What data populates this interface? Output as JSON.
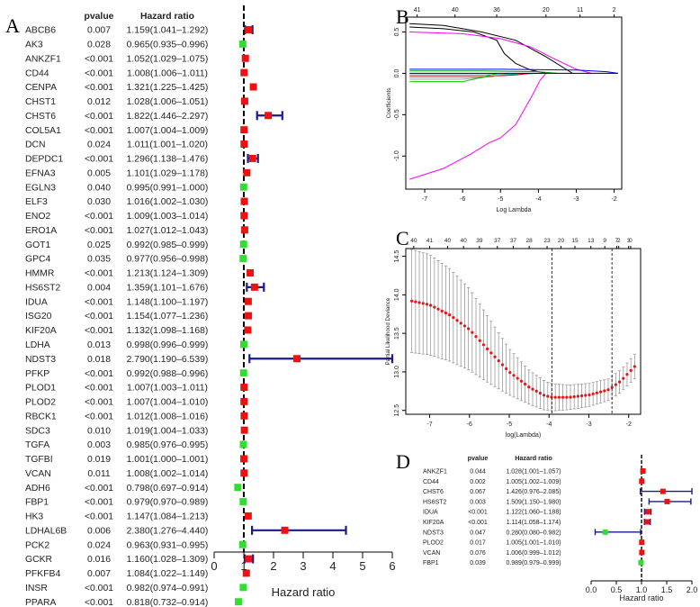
{
  "panel_labels": {
    "a": "A",
    "b": "B",
    "c": "C",
    "d": "D"
  },
  "chart_data": [
    {
      "panel": "A",
      "type": "forest",
      "col_headers": {
        "gene": "",
        "pvalue": "pvalue",
        "hr": "Hazard ratio"
      },
      "xlabel": "Hazard ratio",
      "xlim": [
        0,
        6
      ],
      "xticks": [
        0,
        1,
        2,
        3,
        4,
        5,
        6
      ],
      "ref_line": 1,
      "rows": [
        {
          "gene": "ABCB6",
          "p": "0.007",
          "hr_text": "1.159(1.041–1.292)",
          "hr": 1.159,
          "lo": 1.041,
          "hi": 1.292
        },
        {
          "gene": "AK3",
          "p": "0.028",
          "hr_text": "0.965(0.935–0.996)",
          "hr": 0.965,
          "lo": 0.935,
          "hi": 0.996
        },
        {
          "gene": "ANKZF1",
          "p": "<0.001",
          "hr_text": "1.052(1.029–1.075)",
          "hr": 1.052,
          "lo": 1.029,
          "hi": 1.075
        },
        {
          "gene": "CD44",
          "p": "<0.001",
          "hr_text": "1.008(1.006–1.011)",
          "hr": 1.008,
          "lo": 1.006,
          "hi": 1.011
        },
        {
          "gene": "CENPA",
          "p": "<0.001",
          "hr_text": "1.321(1.225–1.425)",
          "hr": 1.321,
          "lo": 1.225,
          "hi": 1.425
        },
        {
          "gene": "CHST1",
          "p": "0.012",
          "hr_text": "1.028(1.006–1.051)",
          "hr": 1.028,
          "lo": 1.006,
          "hi": 1.051
        },
        {
          "gene": "CHST6",
          "p": "<0.001",
          "hr_text": "1.822(1.446–2.297)",
          "hr": 1.822,
          "lo": 1.446,
          "hi": 2.297
        },
        {
          "gene": "COL5A1",
          "p": "<0.001",
          "hr_text": "1.007(1.004–1.009)",
          "hr": 1.007,
          "lo": 1.004,
          "hi": 1.009
        },
        {
          "gene": "DCN",
          "p": "0.024",
          "hr_text": "1.011(1.001–1.020)",
          "hr": 1.011,
          "lo": 1.001,
          "hi": 1.02
        },
        {
          "gene": "DEPDC1",
          "p": "<0.001",
          "hr_text": "1.296(1.138–1.476)",
          "hr": 1.296,
          "lo": 1.138,
          "hi": 1.476
        },
        {
          "gene": "EFNA3",
          "p": "0.005",
          "hr_text": "1.101(1.029–1.178)",
          "hr": 1.101,
          "lo": 1.029,
          "hi": 1.178
        },
        {
          "gene": "EGLN3",
          "p": "0.040",
          "hr_text": "0.995(0.991–1.000)",
          "hr": 0.995,
          "lo": 0.991,
          "hi": 1.0
        },
        {
          "gene": "ELF3",
          "p": "0.030",
          "hr_text": "1.016(1.002–1.030)",
          "hr": 1.016,
          "lo": 1.002,
          "hi": 1.03
        },
        {
          "gene": "ENO2",
          "p": "<0.001",
          "hr_text": "1.009(1.003–1.014)",
          "hr": 1.009,
          "lo": 1.003,
          "hi": 1.014
        },
        {
          "gene": "ERO1A",
          "p": "<0.001",
          "hr_text": "1.027(1.012–1.043)",
          "hr": 1.027,
          "lo": 1.012,
          "hi": 1.043
        },
        {
          "gene": "GOT1",
          "p": "0.025",
          "hr_text": "0.992(0.985–0.999)",
          "hr": 0.992,
          "lo": 0.985,
          "hi": 0.999
        },
        {
          "gene": "GPC4",
          "p": "0.035",
          "hr_text": "0.977(0.956–0.998)",
          "hr": 0.977,
          "lo": 0.956,
          "hi": 0.998
        },
        {
          "gene": "HMMR",
          "p": "<0.001",
          "hr_text": "1.213(1.124–1.309)",
          "hr": 1.213,
          "lo": 1.124,
          "hi": 1.309
        },
        {
          "gene": "HS6ST2",
          "p": "0.004",
          "hr_text": "1.359(1.101–1.676)",
          "hr": 1.359,
          "lo": 1.101,
          "hi": 1.676
        },
        {
          "gene": "IDUA",
          "p": "<0.001",
          "hr_text": "1.148(1.100–1.197)",
          "hr": 1.148,
          "lo": 1.1,
          "hi": 1.197
        },
        {
          "gene": "ISG20",
          "p": "<0.001",
          "hr_text": "1.154(1.077–1.236)",
          "hr": 1.154,
          "lo": 1.077,
          "hi": 1.236
        },
        {
          "gene": "KIF20A",
          "p": "<0.001",
          "hr_text": "1.132(1.098–1.168)",
          "hr": 1.132,
          "lo": 1.098,
          "hi": 1.168
        },
        {
          "gene": "LDHA",
          "p": "0.013",
          "hr_text": "0.998(0.996–0.999)",
          "hr": 0.998,
          "lo": 0.996,
          "hi": 0.999
        },
        {
          "gene": "NDST3",
          "p": "0.018",
          "hr_text": "2.790(1.190–6.539)",
          "hr": 2.79,
          "lo": 1.19,
          "hi": 6.539
        },
        {
          "gene": "PFKP",
          "p": "<0.001",
          "hr_text": "0.992(0.988–0.996)",
          "hr": 0.992,
          "lo": 0.988,
          "hi": 0.996
        },
        {
          "gene": "PLOD1",
          "p": "<0.001",
          "hr_text": "1.007(1.003–1.011)",
          "hr": 1.007,
          "lo": 1.003,
          "hi": 1.011
        },
        {
          "gene": "PLOD2",
          "p": "<0.001",
          "hr_text": "1.007(1.004–1.010)",
          "hr": 1.007,
          "lo": 1.004,
          "hi": 1.01
        },
        {
          "gene": "RBCK1",
          "p": "<0.001",
          "hr_text": "1.012(1.008–1.016)",
          "hr": 1.012,
          "lo": 1.008,
          "hi": 1.016
        },
        {
          "gene": "SDC3",
          "p": "0.010",
          "hr_text": "1.019(1.004–1.033)",
          "hr": 1.019,
          "lo": 1.004,
          "hi": 1.033
        },
        {
          "gene": "TGFA",
          "p": "0.003",
          "hr_text": "0.985(0.976–0.995)",
          "hr": 0.985,
          "lo": 0.976,
          "hi": 0.995
        },
        {
          "gene": "TGFBI",
          "p": "0.019",
          "hr_text": "1.001(1.000–1.001)",
          "hr": 1.001,
          "lo": 1.0,
          "hi": 1.001
        },
        {
          "gene": "VCAN",
          "p": "0.011",
          "hr_text": "1.008(1.002–1.014)",
          "hr": 1.008,
          "lo": 1.002,
          "hi": 1.014
        },
        {
          "gene": "ADH6",
          "p": "<0.001",
          "hr_text": "0.798(0.697–0.914)",
          "hr": 0.798,
          "lo": 0.697,
          "hi": 0.914
        },
        {
          "gene": "FBP1",
          "p": "<0.001",
          "hr_text": "0.979(0.970–0.989)",
          "hr": 0.979,
          "lo": 0.97,
          "hi": 0.989
        },
        {
          "gene": "HK3",
          "p": "<0.001",
          "hr_text": "1.147(1.084–1.213)",
          "hr": 1.147,
          "lo": 1.084,
          "hi": 1.213
        },
        {
          "gene": "LDHAL6B",
          "p": "0.006",
          "hr_text": "2.380(1.276–4.440)",
          "hr": 2.38,
          "lo": 1.276,
          "hi": 4.44
        },
        {
          "gene": "PCK2",
          "p": "0.024",
          "hr_text": "0.963(0.931–0.995)",
          "hr": 0.963,
          "lo": 0.931,
          "hi": 0.995
        },
        {
          "gene": "GCKR",
          "p": "0.016",
          "hr_text": "1.160(1.028–1.309)",
          "hr": 1.16,
          "lo": 1.028,
          "hi": 1.309
        },
        {
          "gene": "PFKFB4",
          "p": "0.007",
          "hr_text": "1.084(1.022–1.149)",
          "hr": 1.084,
          "lo": 1.022,
          "hi": 1.149
        },
        {
          "gene": "INSR",
          "p": "<0.001",
          "hr_text": "0.982(0.974–0.991)",
          "hr": 0.982,
          "lo": 0.974,
          "hi": 0.991
        },
        {
          "gene": "PPARA",
          "p": "<0.001",
          "hr_text": "0.818(0.732–0.914)",
          "hr": 0.818,
          "lo": 0.732,
          "hi": 0.914
        }
      ]
    },
    {
      "panel": "B",
      "type": "line",
      "title": "",
      "xlabel": "Log Lambda",
      "ylabel": "Coefficients",
      "xlim": [
        -7.5,
        -1.8
      ],
      "ylim": [
        -1.4,
        0.68
      ],
      "xticks": [
        -7,
        -6,
        -5,
        -4,
        -3,
        -2
      ],
      "yticks": [
        -1.0,
        -0.5,
        0.0,
        0.5
      ],
      "ytick_labels": [
        "-1.0",
        "-0.5",
        "0.0",
        "0.5"
      ],
      "top_axis": {
        "values": [
          -7.2,
          -6.2,
          -5.1,
          -3.8,
          -2.9,
          -2.0
        ],
        "labels": [
          "41",
          "40",
          "36",
          "20",
          "11",
          "2"
        ]
      },
      "series": [
        {
          "color": "#000000",
          "points": [
            [
              -7.4,
              0.6
            ],
            [
              -6.5,
              0.58
            ],
            [
              -5.5,
              0.5
            ],
            [
              -4.6,
              0.4
            ],
            [
              -3.8,
              0.2
            ],
            [
              -3.1,
              0.0
            ]
          ]
        },
        {
          "color": "#000000",
          "points": [
            [
              -7.4,
              0.56
            ],
            [
              -6.5,
              0.54
            ],
            [
              -5.7,
              0.5
            ],
            [
              -5.1,
              0.4
            ],
            [
              -4.9,
              0.24
            ],
            [
              -4.6,
              0.12
            ],
            [
              -4.2,
              0.04
            ],
            [
              -3.8,
              0.0
            ]
          ]
        },
        {
          "color": "#ff00ff",
          "points": [
            [
              -7.4,
              0.5
            ],
            [
              -6.0,
              0.48
            ],
            [
              -5.0,
              0.42
            ],
            [
              -4.2,
              0.32
            ],
            [
              -3.6,
              0.18
            ],
            [
              -3.0,
              0.05
            ],
            [
              -2.6,
              0.0
            ]
          ]
        },
        {
          "color": "#ff00ff",
          "points": [
            [
              -7.4,
              -1.28
            ],
            [
              -6.5,
              -1.15
            ],
            [
              -5.8,
              -0.98
            ],
            [
              -5.3,
              -0.84
            ],
            [
              -5.0,
              -0.78
            ],
            [
              -4.6,
              -0.62
            ],
            [
              -4.2,
              -0.3
            ],
            [
              -3.95,
              -0.08
            ],
            [
              -3.8,
              0.0
            ]
          ]
        },
        {
          "color": "#0000ff",
          "points": [
            [
              -7.4,
              0.05
            ],
            [
              -5.0,
              0.05
            ],
            [
              -3.0,
              0.04
            ],
            [
              -2.2,
              0.02
            ],
            [
              -1.9,
              0.0
            ]
          ]
        },
        {
          "color": "#00aa00",
          "points": [
            [
              -7.4,
              0.03
            ],
            [
              -5.5,
              0.03
            ],
            [
              -4.0,
              0.02
            ],
            [
              -3.5,
              0.0
            ]
          ]
        },
        {
          "color": "#00aaaa",
          "points": [
            [
              -7.4,
              -0.02
            ],
            [
              -5.5,
              -0.02
            ],
            [
              -4.5,
              -0.01
            ],
            [
              -4.0,
              0.0
            ]
          ]
        },
        {
          "color": "#ff0000",
          "points": [
            [
              -7.4,
              -0.04
            ],
            [
              -5.5,
              -0.04
            ],
            [
              -4.6,
              -0.02
            ],
            [
              -4.2,
              0.0
            ]
          ]
        },
        {
          "color": "#999999",
          "points": [
            [
              -7.4,
              -0.07
            ],
            [
              -6.0,
              -0.07
            ],
            [
              -5.2,
              -0.04
            ],
            [
              -4.8,
              0.0
            ]
          ]
        },
        {
          "color": "#00cc00",
          "points": [
            [
              -7.4,
              -0.1
            ],
            [
              -6.0,
              -0.1
            ],
            [
              -5.5,
              -0.05
            ],
            [
              -5.1,
              0.0
            ]
          ]
        },
        {
          "color": "#000000",
          "points": [
            [
              -7.4,
              0.0
            ],
            [
              -1.9,
              0.0
            ]
          ]
        }
      ]
    },
    {
      "panel": "C",
      "type": "scatter",
      "xlabel": "log(Lambda)",
      "ylabel": "Partial Likelihood Deviance",
      "xlim": [
        -7.6,
        -1.7
      ],
      "ylim": [
        12.45,
        14.6
      ],
      "xticks": [
        -7,
        -6,
        -5,
        -4,
        -3,
        -2
      ],
      "yticks": [
        12.5,
        13.0,
        13.5,
        14.0,
        14.5
      ],
      "ytick_labels": [
        "12.5",
        "13.0",
        "13.5",
        "14.0",
        "14.5"
      ],
      "vlines": [
        -3.93,
        -2.42
      ],
      "top_axis": {
        "values": [
          -7.4,
          -7.0,
          -6.55,
          -6.15,
          -5.75,
          -5.3,
          -4.9,
          -4.5,
          -4.05,
          -3.7,
          -3.35,
          -2.95,
          -2.6,
          -2.3,
          -2.0
        ],
        "labels": [
          "40",
          "41",
          "40",
          "40",
          "39",
          "37",
          "37",
          "28",
          "23",
          "20",
          "15",
          "13",
          "9",
          "7",
          "3"
        ]
      },
      "top_axis_extra": {
        "values": [
          -2.25,
          -1.95
        ],
        "labels": [
          "2",
          "0"
        ]
      },
      "curve": [
        [
          -7.45,
          13.92
        ],
        [
          -7.0,
          13.87
        ],
        [
          -6.5,
          13.74
        ],
        [
          -6.0,
          13.55
        ],
        [
          -5.5,
          13.27
        ],
        [
          -5.0,
          13.0
        ],
        [
          -4.5,
          12.8
        ],
        [
          -4.1,
          12.69
        ],
        [
          -3.9,
          12.67
        ],
        [
          -3.5,
          12.67
        ],
        [
          -3.0,
          12.7
        ],
        [
          -2.5,
          12.77
        ],
        [
          -2.2,
          12.88
        ],
        [
          -1.85,
          13.07
        ]
      ],
      "band_curve": [
        [
          -7.45,
          0.67
        ],
        [
          -7.0,
          0.65
        ],
        [
          -6.5,
          0.6
        ],
        [
          -6.0,
          0.53
        ],
        [
          -5.5,
          0.42
        ],
        [
          -5.0,
          0.3
        ],
        [
          -4.5,
          0.22
        ],
        [
          -4.0,
          0.18
        ],
        [
          -3.5,
          0.16
        ],
        [
          -3.0,
          0.15
        ],
        [
          -2.5,
          0.14
        ],
        [
          -2.0,
          0.15
        ],
        [
          -1.85,
          0.16
        ]
      ],
      "n_points": 60
    },
    {
      "panel": "D",
      "type": "forest",
      "col_headers": {
        "gene": "",
        "pvalue": "pvalue",
        "hr": "Hazard ratio"
      },
      "xlabel": "Hazard ratio",
      "xlim": [
        0,
        2
      ],
      "xticks": [
        0.0,
        0.5,
        1.0,
        1.5,
        2.0
      ],
      "xtick_labels": [
        "0.0",
        "0.5",
        "1.0",
        "1.5",
        "2.0"
      ],
      "ref_line": 1,
      "rows": [
        {
          "gene": "ANKZF1",
          "p": "0.044",
          "hr_text": "1.028(1.001–1.057)",
          "hr": 1.028,
          "lo": 1.001,
          "hi": 1.057
        },
        {
          "gene": "CD44",
          "p": "0.002",
          "hr_text": "1.005(1.002–1.009)",
          "hr": 1.005,
          "lo": 1.002,
          "hi": 1.009
        },
        {
          "gene": "CHST6",
          "p": "0.067",
          "hr_text": "1.426(0.976–2.085)",
          "hr": 1.426,
          "lo": 0.976,
          "hi": 2.085
        },
        {
          "gene": "HS6ST2",
          "p": "0.003",
          "hr_text": "1.509(1.150–1.980)",
          "hr": 1.509,
          "lo": 1.15,
          "hi": 1.98
        },
        {
          "gene": "IDUA",
          "p": "<0.001",
          "hr_text": "1.122(1.060–1.188)",
          "hr": 1.122,
          "lo": 1.06,
          "hi": 1.188
        },
        {
          "gene": "KIF20A",
          "p": "<0.001",
          "hr_text": "1.114(1.058–1.174)",
          "hr": 1.114,
          "lo": 1.058,
          "hi": 1.174
        },
        {
          "gene": "NDST3",
          "p": "0.047",
          "hr_text": "0.280(0.080–0.982)",
          "hr": 0.28,
          "lo": 0.08,
          "hi": 0.982
        },
        {
          "gene": "PLOD2",
          "p": "0.017",
          "hr_text": "1.005(1.001–1.010)",
          "hr": 1.005,
          "lo": 1.001,
          "hi": 1.01
        },
        {
          "gene": "VCAN",
          "p": "0.076",
          "hr_text": "1.006(0.999–1.012)",
          "hr": 1.006,
          "lo": 0.999,
          "hi": 1.012
        },
        {
          "gene": "FBP1",
          "p": "0.039",
          "hr_text": "0.989(0.979–0.999)",
          "hr": 0.989,
          "lo": 0.979,
          "hi": 0.999
        }
      ]
    }
  ]
}
